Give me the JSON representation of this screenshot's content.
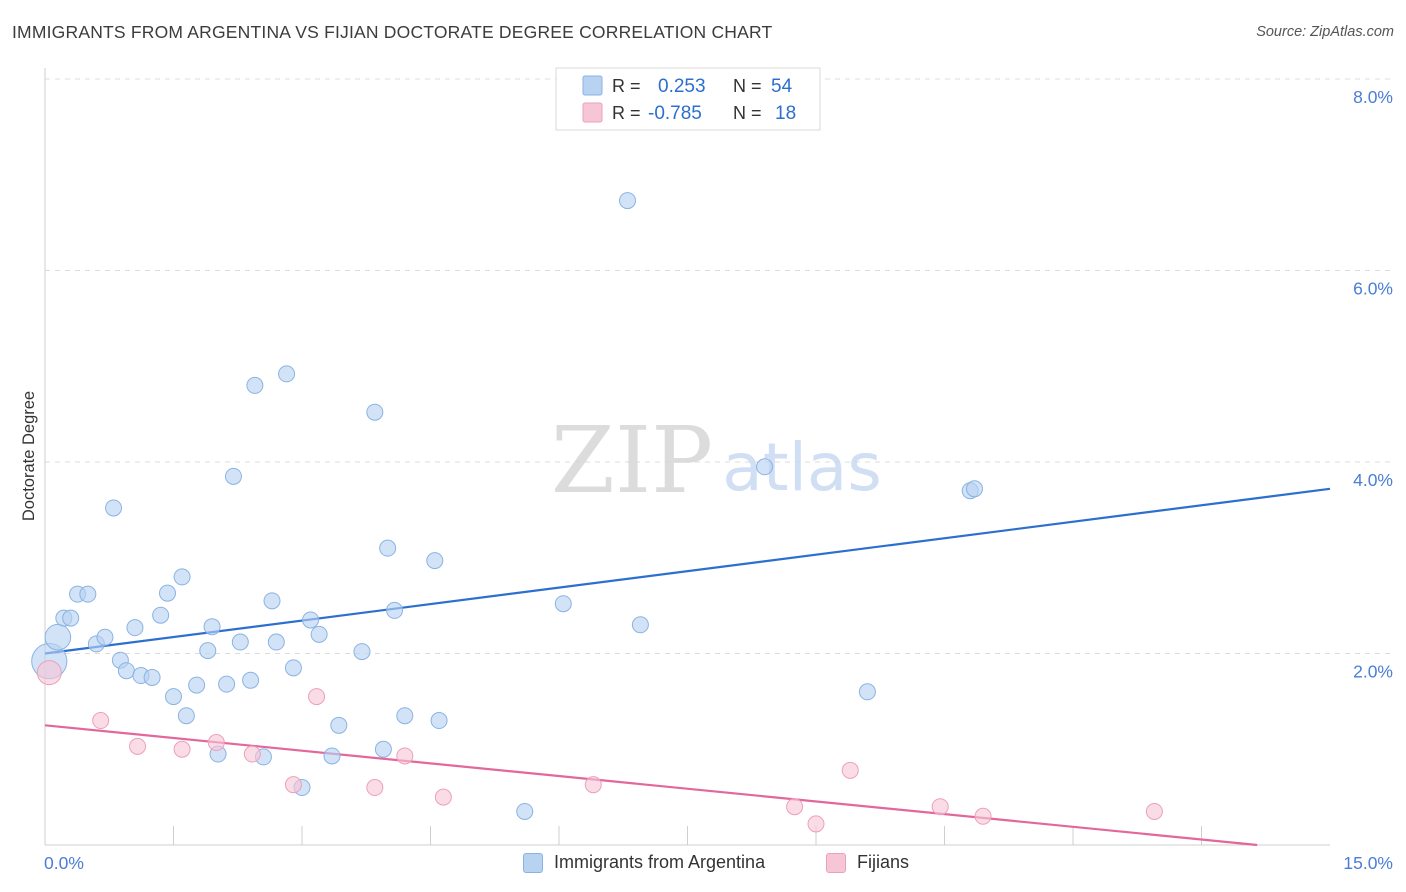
{
  "header": {
    "title": "IMMIGRANTS FROM ARGENTINA VS FIJIAN DOCTORATE DEGREE CORRELATION CHART",
    "source": "Source: ZipAtlas.com"
  },
  "watermark": {
    "zip": "ZIP",
    "atlas": "atlas"
  },
  "legend": {
    "r_label": "R =",
    "n_label": "N =",
    "series": [
      {
        "r": "0.253",
        "n": "54"
      },
      {
        "r": "-0.785",
        "n": "18"
      }
    ]
  },
  "bottom_legend": [
    {
      "label": "Immigrants from Argentina"
    },
    {
      "label": "Fijians"
    }
  ],
  "colors": {
    "blue_fill": "#b8d2f2",
    "blue_stroke": "#8ab3e3",
    "blue_line": "#2c6fcf",
    "pink_fill": "#f7c6d6",
    "pink_stroke": "#ee9fba",
    "pink_line": "#e2679a",
    "axis_text": "#4a7dd6"
  },
  "chart_data": {
    "type": "scatter",
    "title": "IMMIGRANTS FROM ARGENTINA VS FIJIAN DOCTORATE DEGREE CORRELATION CHART",
    "xlabel": "",
    "ylabel": "Doctorate Degree",
    "xlim": [
      0,
      15
    ],
    "ylim": [
      0,
      8
    ],
    "x_tick_labels": {
      "left": "0.0%",
      "right": "15.0%"
    },
    "y_ticks": [
      {
        "value": 2,
        "label": "2.0%"
      },
      {
        "value": 4,
        "label": "4.0%"
      },
      {
        "value": 6,
        "label": "6.0%"
      },
      {
        "value": 8,
        "label": "8.0%"
      }
    ],
    "x_minor_ticks": [
      1.5,
      3.0,
      4.5,
      6.0,
      7.5,
      9.0,
      10.5,
      12.0,
      13.5
    ],
    "series": [
      {
        "name": "Immigrants from Argentina",
        "r": 0.253,
        "n": 54,
        "trend": {
          "x0": 0,
          "y0": 2.0,
          "x1": 15,
          "y1": 3.72
        },
        "points": [
          {
            "x": 0.05,
            "y": 1.92,
            "s": 2.2
          },
          {
            "x": 0.15,
            "y": 2.17,
            "s": 1.6
          },
          {
            "x": 0.22,
            "y": 2.37
          },
          {
            "x": 0.3,
            "y": 2.37
          },
          {
            "x": 0.38,
            "y": 2.62
          },
          {
            "x": 0.5,
            "y": 2.62
          },
          {
            "x": 0.6,
            "y": 2.1
          },
          {
            "x": 0.7,
            "y": 2.17
          },
          {
            "x": 0.8,
            "y": 3.52
          },
          {
            "x": 0.88,
            "y": 1.93
          },
          {
            "x": 0.95,
            "y": 1.82
          },
          {
            "x": 1.05,
            "y": 2.27
          },
          {
            "x": 1.12,
            "y": 1.77
          },
          {
            "x": 1.25,
            "y": 1.75
          },
          {
            "x": 1.35,
            "y": 2.4
          },
          {
            "x": 1.43,
            "y": 2.63
          },
          {
            "x": 1.5,
            "y": 1.55
          },
          {
            "x": 1.6,
            "y": 2.8
          },
          {
            "x": 1.65,
            "y": 1.35
          },
          {
            "x": 1.77,
            "y": 1.67
          },
          {
            "x": 1.9,
            "y": 2.03
          },
          {
            "x": 1.95,
            "y": 2.28
          },
          {
            "x": 2.02,
            "y": 0.95
          },
          {
            "x": 2.12,
            "y": 1.68
          },
          {
            "x": 2.2,
            "y": 3.85
          },
          {
            "x": 2.28,
            "y": 2.12
          },
          {
            "x": 2.4,
            "y": 1.72
          },
          {
            "x": 2.45,
            "y": 4.8
          },
          {
            "x": 2.55,
            "y": 0.92
          },
          {
            "x": 2.65,
            "y": 2.55
          },
          {
            "x": 2.7,
            "y": 2.12
          },
          {
            "x": 2.82,
            "y": 4.92
          },
          {
            "x": 2.9,
            "y": 1.85
          },
          {
            "x": 3.0,
            "y": 0.6
          },
          {
            "x": 3.1,
            "y": 2.35
          },
          {
            "x": 3.2,
            "y": 2.2
          },
          {
            "x": 3.35,
            "y": 0.93
          },
          {
            "x": 3.43,
            "y": 1.25
          },
          {
            "x": 3.7,
            "y": 2.02
          },
          {
            "x": 3.85,
            "y": 4.52
          },
          {
            "x": 3.95,
            "y": 1.0
          },
          {
            "x": 4.0,
            "y": 3.1
          },
          {
            "x": 4.08,
            "y": 2.45
          },
          {
            "x": 4.2,
            "y": 1.35
          },
          {
            "x": 4.55,
            "y": 2.97
          },
          {
            "x": 4.6,
            "y": 1.3
          },
          {
            "x": 5.6,
            "y": 0.35
          },
          {
            "x": 6.05,
            "y": 2.52
          },
          {
            "x": 6.8,
            "y": 6.73
          },
          {
            "x": 6.95,
            "y": 2.3
          },
          {
            "x": 8.4,
            "y": 3.95
          },
          {
            "x": 9.6,
            "y": 1.6
          },
          {
            "x": 10.8,
            "y": 3.7
          },
          {
            "x": 10.85,
            "y": 3.72
          }
        ]
      },
      {
        "name": "Fijians",
        "r": -0.785,
        "n": 18,
        "trend": {
          "x0": 0,
          "y0": 1.25,
          "x1": 14.15,
          "y1": 0
        },
        "points": [
          {
            "x": 0.05,
            "y": 1.8,
            "s": 1.5
          },
          {
            "x": 0.65,
            "y": 1.3
          },
          {
            "x": 1.08,
            "y": 1.03
          },
          {
            "x": 1.6,
            "y": 1.0
          },
          {
            "x": 2.0,
            "y": 1.07
          },
          {
            "x": 2.42,
            "y": 0.95
          },
          {
            "x": 2.9,
            "y": 0.63
          },
          {
            "x": 3.17,
            "y": 1.55
          },
          {
            "x": 3.85,
            "y": 0.6
          },
          {
            "x": 4.2,
            "y": 0.93
          },
          {
            "x": 4.65,
            "y": 0.5
          },
          {
            "x": 6.4,
            "y": 0.63
          },
          {
            "x": 8.75,
            "y": 0.4
          },
          {
            "x": 9.0,
            "y": 0.22
          },
          {
            "x": 9.4,
            "y": 0.78
          },
          {
            "x": 10.45,
            "y": 0.4
          },
          {
            "x": 10.95,
            "y": 0.3
          },
          {
            "x": 12.95,
            "y": 0.35
          }
        ]
      }
    ]
  }
}
